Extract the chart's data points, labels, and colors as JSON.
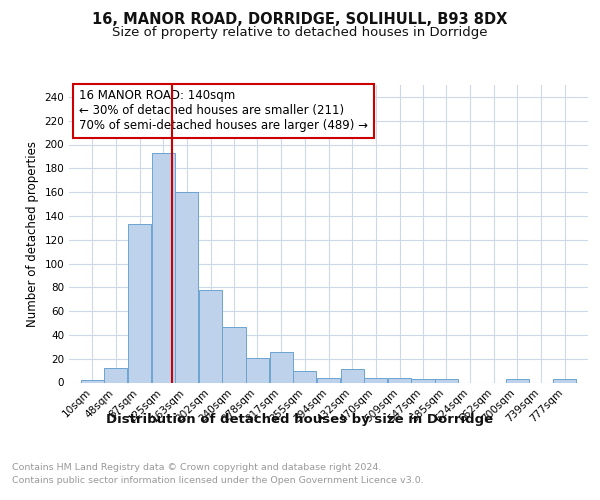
{
  "title1": "16, MANOR ROAD, DORRIDGE, SOLIHULL, B93 8DX",
  "title2": "Size of property relative to detached houses in Dorridge",
  "xlabel": "Distribution of detached houses by size in Dorridge",
  "ylabel": "Number of detached properties",
  "bin_labels": [
    "10sqm",
    "48sqm",
    "87sqm",
    "125sqm",
    "163sqm",
    "202sqm",
    "240sqm",
    "278sqm",
    "317sqm",
    "355sqm",
    "394sqm",
    "432sqm",
    "470sqm",
    "509sqm",
    "547sqm",
    "585sqm",
    "624sqm",
    "662sqm",
    "700sqm",
    "739sqm",
    "777sqm"
  ],
  "bin_values": [
    10,
    48,
    87,
    125,
    163,
    202,
    240,
    278,
    317,
    355,
    394,
    432,
    470,
    509,
    547,
    585,
    624,
    662,
    700,
    739,
    777
  ],
  "bar_heights": [
    2,
    12,
    133,
    193,
    160,
    78,
    47,
    21,
    26,
    10,
    4,
    11,
    4,
    4,
    3,
    3,
    0,
    0,
    3,
    0,
    3
  ],
  "bar_color": "#bed3eb",
  "bar_edge_color": "#6ba3d0",
  "vline_x": 140,
  "vline_color": "#cc0000",
  "annotation_line1": "16 MANOR ROAD: 140sqm",
  "annotation_line2": "← 30% of detached houses are smaller (211)",
  "annotation_line3": "70% of semi-detached houses are larger (489) →",
  "annotation_box_edge_color": "#cc0000",
  "ylim": [
    0,
    250
  ],
  "yticks": [
    0,
    20,
    40,
    60,
    80,
    100,
    120,
    140,
    160,
    180,
    200,
    220,
    240
  ],
  "bin_width": 38,
  "copyright_line1": "Contains HM Land Registry data © Crown copyright and database right 2024.",
  "copyright_line2": "Contains public sector information licensed under the Open Government Licence v3.0.",
  "background_color": "#ffffff",
  "grid_color": "#ccd9e8",
  "title1_fontsize": 10.5,
  "title2_fontsize": 9.5,
  "xlabel_fontsize": 9.5,
  "ylabel_fontsize": 8.5,
  "tick_fontsize": 7.5,
  "annot_fontsize": 8.5,
  "copyright_fontsize": 6.8
}
